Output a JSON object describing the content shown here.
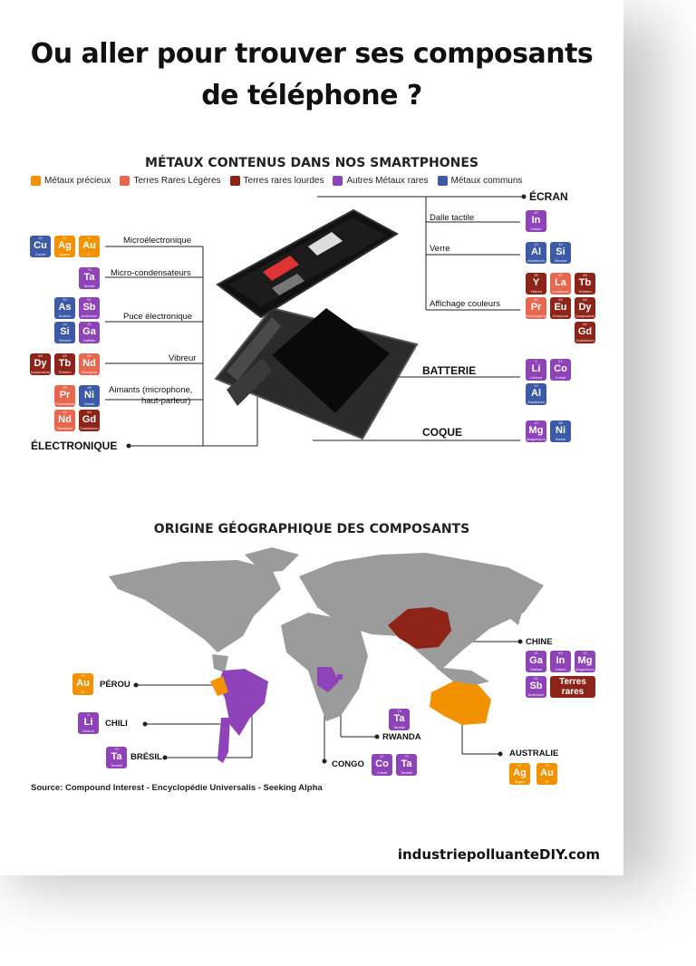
{
  "title": {
    "line1": "Ou aller pour trouver ses composants",
    "line2": "de téléphone ?"
  },
  "metals_section": {
    "title": "MÉTAUX CONTENUS DANS NOS SMARTPHONES",
    "legend": [
      {
        "label": "Métaux précieux",
        "color": "#f39200"
      },
      {
        "label": "Terres Rares Légères",
        "color": "#e9674f"
      },
      {
        "label": "Terres rares lourdes",
        "color": "#8e2318"
      },
      {
        "label": "Autres Métaux rares",
        "color": "#8e44b8"
      },
      {
        "label": "Métaux communs",
        "color": "#3d5aa8"
      }
    ],
    "left_labels": {
      "microelectronique": "Microélectronique",
      "micro_condensateurs": "Micro-condensateurs",
      "puce": "Puce électronique",
      "vibreur": "Vibreur",
      "aimants": "Aimants (microphone,",
      "aimants2": "haut-parleur)",
      "electronique": "ÉLECTRONIQUE"
    },
    "right_labels": {
      "ecran": "ÉCRAN",
      "dalle": "Dalle tactile",
      "verre": "Verre",
      "affichage": "Affichage couleurs",
      "batterie": "BATTERIE",
      "coque": "COQUE"
    },
    "elements": {
      "cu": {
        "num": "29",
        "sym": "Cu",
        "name": "Cuivre"
      },
      "ag": {
        "num": "47",
        "sym": "Ag",
        "name": "Argent"
      },
      "au": {
        "num": "79",
        "sym": "Au",
        "name": "Or"
      },
      "ta": {
        "num": "73",
        "sym": "Ta",
        "name": "Tantale"
      },
      "as": {
        "num": "33",
        "sym": "As",
        "name": "Arsenic"
      },
      "sb": {
        "num": "51",
        "sym": "Sb",
        "name": "Antimoine"
      },
      "si": {
        "num": "14",
        "sym": "Si",
        "name": "Silicone"
      },
      "ga": {
        "num": "31",
        "sym": "Ga",
        "name": "Gallium"
      },
      "dy": {
        "num": "66",
        "sym": "Dy",
        "name": "Dysprosium"
      },
      "tb": {
        "num": "65",
        "sym": "Tb",
        "name": "Terbium"
      },
      "nd": {
        "num": "60",
        "sym": "Nd",
        "name": "Néodyme"
      },
      "pr": {
        "num": "59",
        "sym": "Pr",
        "name": "Praséodyme"
      },
      "ni": {
        "num": "28",
        "sym": "Ni",
        "name": "Nickel"
      },
      "gd": {
        "num": "64",
        "sym": "Gd",
        "name": "Gadolinium"
      },
      "in": {
        "num": "49",
        "sym": "In",
        "name": "Indium"
      },
      "al": {
        "num": "13",
        "sym": "Al",
        "name": "Aluminium"
      },
      "y": {
        "num": "39",
        "sym": "Y",
        "name": "Yttrium"
      },
      "la": {
        "num": "57",
        "sym": "La",
        "name": "Lanthane"
      },
      "eu": {
        "num": "63",
        "sym": "Eu",
        "name": "Europium"
      },
      "li": {
        "num": "3",
        "sym": "Li",
        "name": "Lithium"
      },
      "co": {
        "num": "27",
        "sym": "Co",
        "name": "Cobalt"
      },
      "mg": {
        "num": "12",
        "sym": "Mg",
        "name": "Magnésium"
      }
    }
  },
  "geo_section": {
    "title": "ORIGINE GÉOGRAPHIQUE DES COMPOSANTS",
    "countries": {
      "chine": "CHINE",
      "perou": "PÉROU",
      "chili": "CHILI",
      "bresil": "BRÉSIL",
      "rwanda": "RWANDA",
      "congo": "CONGO",
      "australie": "AUSTRALIE"
    },
    "terres_rares": "Terres rares",
    "source": "Source: Compound Interest - Encyclopédie Universalis - Seeking Alpha"
  },
  "footer": {
    "site": "industriepolluanteDIY.com"
  }
}
